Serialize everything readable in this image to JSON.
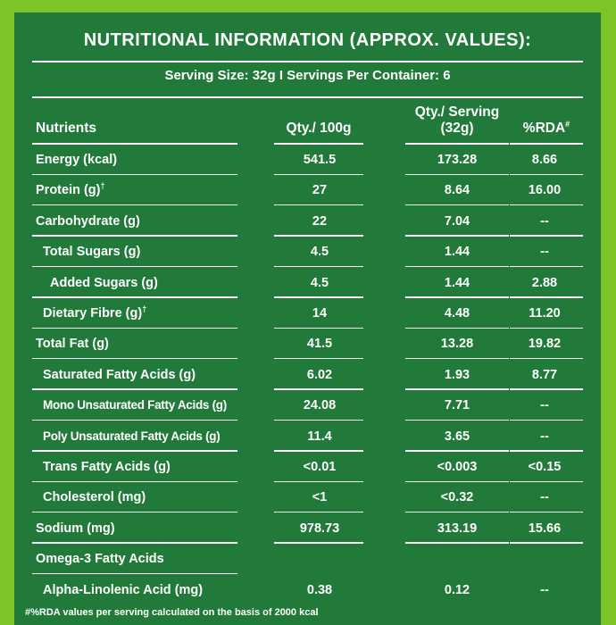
{
  "title": "NUTRITIONAL INFORMATION (APPROX. VALUES):",
  "serving_info": "Serving Size: 32g  I  Servings Per Container: 6",
  "headers": {
    "nutrients": "Nutrients",
    "qty_100g": "Qty./ 100g",
    "qty_serving_line1": "Qty./ Serving",
    "qty_serving_line2": "(32g)",
    "rda": "%RDA",
    "rda_mark": "#"
  },
  "rows": [
    {
      "name": "Energy (kcal)",
      "mark": "",
      "indent": 0,
      "qty_100g": "541.5",
      "qty_serving": "173.28",
      "rda": "8.66"
    },
    {
      "name": "Protein (g)",
      "mark": "†",
      "indent": 0,
      "qty_100g": "27",
      "qty_serving": "8.64",
      "rda": "16.00"
    },
    {
      "name": "Carbohydrate (g)",
      "mark": "",
      "indent": 0,
      "qty_100g": "22",
      "qty_serving": "7.04",
      "rda": "--"
    },
    {
      "name": "Total Sugars (g)",
      "mark": "",
      "indent": 1,
      "qty_100g": "4.5",
      "qty_serving": "1.44",
      "rda": "--"
    },
    {
      "name": "Added Sugars (g)",
      "mark": "",
      "indent": 2,
      "qty_100g": "4.5",
      "qty_serving": "1.44",
      "rda": "2.88"
    },
    {
      "name": "Dietary Fibre (g)",
      "mark": "†",
      "indent": 1,
      "qty_100g": "14",
      "qty_serving": "4.48",
      "rda": "11.20"
    },
    {
      "name": "Total Fat (g)",
      "mark": "",
      "indent": 0,
      "qty_100g": "41.5",
      "qty_serving": "13.28",
      "rda": "19.82"
    },
    {
      "name": "Saturated Fatty Acids (g)",
      "mark": "",
      "indent": 1,
      "qty_100g": "6.02",
      "qty_serving": "1.93",
      "rda": "8.77"
    },
    {
      "name": "Mono Unsaturated Fatty Acids (g)",
      "mark": "",
      "indent": 1,
      "qty_100g": "24.08",
      "qty_serving": "7.71",
      "rda": "--"
    },
    {
      "name": "Poly Unsaturated Fatty Acids (g)",
      "mark": "",
      "indent": 1,
      "qty_100g": "11.4",
      "qty_serving": "3.65",
      "rda": "--"
    },
    {
      "name": "Trans Fatty Acids (g)",
      "mark": "",
      "indent": 1,
      "qty_100g": "<0.01",
      "qty_serving": "<0.003",
      "rda": "<0.15"
    },
    {
      "name": "Cholesterol (mg)",
      "mark": "",
      "indent": 1,
      "qty_100g": "<1",
      "qty_serving": "<0.32",
      "rda": "--"
    },
    {
      "name": "Sodium (mg)",
      "mark": "",
      "indent": 0,
      "qty_100g": "978.73",
      "qty_serving": "313.19",
      "rda": "15.66"
    },
    {
      "name": "Omega-3 Fatty Acids",
      "mark": "",
      "indent": 0,
      "qty_100g": "",
      "qty_serving": "",
      "rda": ""
    },
    {
      "name": "Alpha-Linolenic Acid (mg)",
      "mark": "",
      "indent": 1,
      "qty_100g": "0.38",
      "qty_serving": "0.12",
      "rda": "--"
    }
  ],
  "footnote": "#%RDA values per serving calculated on the basis of 2000 kcal",
  "colors": {
    "panel": "#217a3a",
    "border": "#7cc427",
    "text": "#ffffff"
  }
}
